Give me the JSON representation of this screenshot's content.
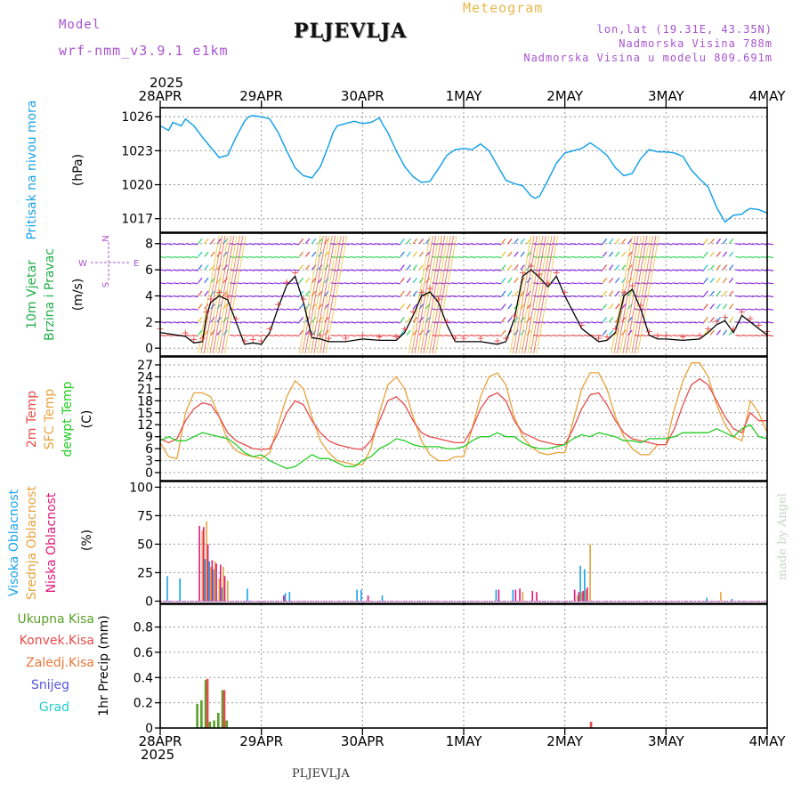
{
  "header": {
    "model_label": "Model",
    "model_name": "wrf-nmm_v3.9.1 e1km",
    "station": "PLJEVLJA",
    "meteogram_label": "Meteogram",
    "lonlat": "lon,lat (19.31E, 43.35N)",
    "elevation": "Nadmorska Visina 788m",
    "elevation_model": "Nadmorska Visina u modelu 809.691m"
  },
  "footer": {
    "station": "PLJEVLJA",
    "credit": "made by Angel",
    "year": "2025"
  },
  "colors": {
    "pressure": "#1aa3e8",
    "temp2m": "#e84a4a",
    "sfc": "#e8a23a",
    "dewpt": "#22cc22",
    "high_cloud": "#1aa3e8",
    "mid_cloud": "#e8a23a",
    "low_cloud": "#e0187a",
    "total_precip": "#5aa02a",
    "conv_precip": "#e84a4a",
    "frozen_precip": "#e8783a",
    "snow": "#5555dd",
    "hail": "#22cccc"
  },
  "chart_data": [
    {
      "type": "line",
      "panel": "pressure",
      "x_ticks": [
        "28APR",
        "29APR",
        "30APR",
        "1MAY",
        "2MAY",
        "3MAY",
        "4MAY"
      ],
      "x_range_hours": [
        0,
        144
      ],
      "ylabel_main": "Pritisak na nivou mora",
      "ylabel_unit": "(hPa)",
      "y_ticks": [
        1017,
        1020,
        1023,
        1026
      ],
      "ylim": [
        1015.8,
        1026.8
      ],
      "grid": true,
      "series": [
        {
          "name": "Pritisak na nivou mora",
          "x": [
            0,
            2,
            3,
            5,
            6,
            8,
            10,
            12,
            14,
            16,
            18,
            20,
            21,
            22,
            24,
            26,
            28,
            30,
            32,
            34,
            36,
            38,
            40,
            41,
            42,
            44,
            46,
            48,
            50,
            52,
            53,
            54,
            56,
            58,
            60,
            62,
            64,
            66,
            68,
            70,
            72,
            74,
            76,
            78,
            80,
            82,
            84,
            86,
            88,
            89,
            90,
            92,
            94,
            96,
            98,
            100,
            102,
            104,
            106,
            108,
            110,
            112,
            114,
            116,
            118,
            120,
            122,
            124,
            126,
            128,
            130,
            132,
            134,
            136,
            138,
            139,
            140,
            142,
            144
          ],
          "y": [
            1025.2,
            1024.8,
            1025.5,
            1025.2,
            1025.8,
            1025.2,
            1024.2,
            1023.3,
            1022.4,
            1022.6,
            1024.2,
            1025.6,
            1026.0,
            1026.1,
            1026.0,
            1025.8,
            1024.6,
            1023.0,
            1021.5,
            1020.8,
            1020.6,
            1021.6,
            1023.5,
            1024.6,
            1025.2,
            1025.4,
            1025.6,
            1025.4,
            1025.5,
            1025.9,
            1025.2,
            1024.6,
            1023.0,
            1021.6,
            1020.7,
            1020.2,
            1020.3,
            1021.4,
            1022.6,
            1023.1,
            1023.2,
            1023.1,
            1023.6,
            1023.0,
            1021.7,
            1020.4,
            1020.1,
            1019.9,
            1019.0,
            1018.8,
            1019.0,
            1020.4,
            1021.9,
            1022.8,
            1023.0,
            1023.2,
            1023.7,
            1023.2,
            1022.6,
            1021.5,
            1020.8,
            1021.0,
            1022.3,
            1023.1,
            1022.9,
            1022.9,
            1022.8,
            1022.5,
            1021.3,
            1020.5,
            1019.8,
            1018.0,
            1016.7,
            1017.3,
            1017.4,
            1017.7,
            1017.9,
            1017.8,
            1017.5
          ]
        }
      ]
    },
    {
      "type": "line",
      "panel": "wind",
      "ylabel_main_1": "10m Vjetar",
      "ylabel_main_2": "Brzina i Pravac",
      "ylabel_unit": "(m/s)",
      "compass": "N",
      "compass_w": "W",
      "compass_e": "E",
      "compass_s": "S",
      "y_ticks": [
        0,
        2,
        4,
        6,
        8
      ],
      "ylim": [
        -0.6,
        8.8
      ],
      "grid": true,
      "series": [
        {
          "name": "speed",
          "x": [
            0,
            6,
            8,
            10,
            11,
            12,
            14,
            16,
            18,
            20,
            22,
            24,
            26,
            28,
            30,
            32,
            34,
            36,
            38,
            40,
            44,
            48,
            52,
            56,
            58,
            60,
            62,
            64,
            66,
            68,
            70,
            72,
            76,
            80,
            82,
            84,
            86,
            88,
            90,
            92,
            94,
            96,
            100,
            104,
            106,
            108,
            110,
            112,
            114,
            116,
            118,
            120,
            124,
            128,
            130,
            132,
            134,
            136,
            138,
            140,
            142,
            144
          ],
          "y": [
            1.2,
            0.9,
            0.4,
            0.5,
            2.5,
            3.5,
            4.0,
            3.7,
            2.0,
            0.3,
            0.4,
            0.3,
            1.2,
            3.1,
            4.8,
            5.5,
            3.5,
            0.8,
            0.7,
            0.5,
            0.5,
            0.7,
            0.6,
            0.6,
            1.2,
            2.5,
            4.0,
            4.3,
            3.5,
            1.8,
            0.5,
            0.5,
            0.5,
            0.3,
            0.5,
            2.2,
            5.5,
            6.0,
            5.4,
            4.7,
            5.5,
            4.0,
            1.5,
            0.5,
            0.6,
            1.2,
            4.0,
            4.5,
            3.0,
            1.0,
            0.7,
            0.7,
            0.6,
            0.7,
            1.2,
            1.8,
            2.1,
            1.2,
            2.5,
            2.0,
            1.5,
            1.0
          ]
        }
      ]
    },
    {
      "type": "line",
      "panel": "temperature",
      "ylabel_1": "2m Temp",
      "ylabel_2": "SFC Temp",
      "ylabel_3": "dewpt Temp",
      "ylabel_unit": "(C)",
      "y_ticks": [
        0,
        3,
        6,
        9,
        12,
        15,
        18,
        21,
        24,
        27
      ],
      "ylim": [
        -2,
        29
      ],
      "grid": true,
      "series": [
        {
          "name": "2m Temp",
          "x": [
            0,
            2,
            4,
            6,
            8,
            10,
            12,
            14,
            16,
            18,
            20,
            22,
            24,
            26,
            28,
            30,
            32,
            34,
            36,
            38,
            40,
            42,
            44,
            46,
            48,
            50,
            52,
            54,
            56,
            58,
            60,
            62,
            64,
            66,
            68,
            70,
            72,
            74,
            76,
            78,
            80,
            82,
            84,
            86,
            88,
            90,
            92,
            94,
            96,
            98,
            100,
            102,
            104,
            106,
            108,
            110,
            112,
            114,
            116,
            118,
            120,
            122,
            124,
            126,
            128,
            130,
            132,
            134,
            136,
            138,
            140,
            142,
            144
          ],
          "y": [
            8.5,
            7.5,
            8.5,
            13,
            16,
            17.5,
            17,
            14,
            10,
            8,
            7,
            6,
            5.8,
            6,
            10,
            15,
            18,
            17,
            13,
            10,
            8,
            7,
            6.5,
            6,
            5.8,
            8,
            13,
            18,
            19,
            17,
            13,
            10,
            9,
            8.5,
            8,
            7.5,
            7.5,
            11,
            16,
            19,
            20,
            18,
            13,
            10,
            9,
            8,
            7.5,
            7,
            7,
            11,
            16,
            19.5,
            20,
            17,
            13,
            10,
            8.5,
            8,
            7.5,
            7,
            7,
            11,
            17,
            22,
            23.5,
            22,
            18,
            14,
            11,
            10,
            15,
            13,
            13
          ]
        },
        {
          "name": "SFC Temp",
          "x": [
            0,
            2,
            4,
            6,
            8,
            10,
            12,
            14,
            16,
            18,
            20,
            22,
            24,
            26,
            28,
            30,
            32,
            34,
            36,
            38,
            40,
            42,
            44,
            46,
            48,
            50,
            52,
            54,
            56,
            58,
            60,
            62,
            64,
            66,
            68,
            70,
            72,
            74,
            76,
            78,
            80,
            82,
            84,
            86,
            88,
            90,
            92,
            94,
            96,
            98,
            100,
            102,
            104,
            106,
            108,
            110,
            112,
            114,
            116,
            118,
            120,
            122,
            124,
            126,
            128,
            130,
            132,
            134,
            136,
            138,
            140,
            142,
            144
          ],
          "y": [
            7.5,
            4,
            3.5,
            15,
            20,
            20,
            19,
            14,
            8,
            5.5,
            4.5,
            4,
            3.5,
            5,
            12,
            19,
            23,
            21,
            14,
            8,
            5,
            3,
            2.5,
            2,
            2,
            6,
            15,
            22,
            24,
            21,
            14,
            8,
            4.5,
            3,
            3,
            4,
            4,
            11,
            19,
            24,
            25,
            22,
            14,
            9,
            6.5,
            5,
            4.5,
            5,
            5,
            13,
            21,
            25,
            25,
            21,
            14,
            9,
            6,
            4.5,
            4.5,
            7,
            7,
            16,
            23,
            27.5,
            27.5,
            24,
            17,
            12,
            9,
            8,
            18,
            15,
            10
          ]
        },
        {
          "name": "dewpt Temp",
          "x": [
            0,
            2,
            4,
            6,
            8,
            10,
            12,
            14,
            16,
            18,
            20,
            22,
            24,
            26,
            28,
            30,
            32,
            34,
            36,
            38,
            40,
            42,
            44,
            46,
            48,
            50,
            52,
            54,
            56,
            58,
            60,
            62,
            64,
            66,
            68,
            70,
            72,
            74,
            76,
            78,
            80,
            82,
            84,
            86,
            88,
            90,
            92,
            94,
            96,
            98,
            100,
            102,
            104,
            106,
            108,
            110,
            112,
            114,
            116,
            118,
            120,
            122,
            124,
            126,
            128,
            130,
            132,
            134,
            136,
            138,
            140,
            142,
            144
          ],
          "y": [
            8,
            9,
            8,
            8,
            9,
            10,
            9.5,
            9,
            8.5,
            7,
            5,
            4,
            4.5,
            3,
            2,
            1,
            1.5,
            3,
            4.5,
            3.5,
            3.5,
            2.5,
            1.5,
            1.5,
            3,
            4,
            6,
            7,
            8.5,
            8,
            7,
            6.5,
            6.5,
            6.5,
            6,
            6,
            6.5,
            8,
            9,
            9,
            10,
            9,
            9,
            7.5,
            6.5,
            6,
            6,
            6.5,
            7,
            8.5,
            9.5,
            9,
            10,
            9.5,
            9,
            8,
            8,
            7.5,
            8.5,
            8.5,
            8.5,
            9,
            10,
            10,
            10,
            10,
            11,
            10,
            9,
            11,
            12,
            9,
            8.5
          ]
        }
      ]
    },
    {
      "type": "bar",
      "panel": "clouds",
      "ylabel_1": "Visoka Oblacnost",
      "ylabel_2": "Srednja Oblacnost",
      "ylabel_3": "Niska Oblacnost",
      "ylabel_unit": "(%)",
      "y_ticks": [
        0,
        25,
        50,
        75,
        100
      ],
      "ylim": [
        -2,
        105
      ],
      "grid": true,
      "series": [
        {
          "name": "Visoka Oblacnost",
          "x": [
            2,
            5,
            11,
            12,
            13,
            15,
            21,
            30,
            31,
            47,
            48,
            53,
            80,
            84,
            100,
            101,
            130,
            136
          ],
          "y": [
            22,
            20,
            37,
            35,
            28,
            12,
            11,
            7,
            8,
            10,
            10,
            5,
            10,
            10,
            31,
            28,
            3,
            2
          ]
        },
        {
          "name": "Srednja Oblacnost",
          "x": [
            10,
            11,
            12,
            13,
            14,
            15,
            16,
            86,
            99,
            100,
            101,
            102,
            133
          ],
          "y": [
            62,
            70,
            30,
            35,
            20,
            30,
            18,
            8,
            5,
            8,
            10,
            50,
            8
          ]
        },
        {
          "name": "Niska Oblacnost",
          "x": [
            9,
            10,
            11,
            12,
            13,
            14,
            15,
            29,
            49,
            80,
            84,
            85,
            88,
            89,
            98,
            99,
            100,
            101
          ],
          "y": [
            66,
            65,
            50,
            36,
            33,
            32,
            22,
            5,
            5,
            10,
            10,
            11,
            9,
            8,
            10,
            8,
            9,
            12
          ]
        }
      ]
    },
    {
      "type": "bar",
      "panel": "precip",
      "ylabel_unit": "1hr Precip (mm)",
      "legend": [
        "Ukupna Kisa",
        "Konvek.Kisa",
        "Zaledj.Kisa",
        "Snijeg",
        "Grad"
      ],
      "y_ticks": [
        0,
        0.2,
        0.4,
        0.6,
        0.8
      ],
      "ylim": [
        0,
        0.98
      ],
      "grid": true,
      "x_bottom_ticks": [
        "28APR",
        "29APR",
        "30APR",
        "1MAY",
        "2MAY",
        "3MAY",
        "4MAY"
      ],
      "series": [
        {
          "name": "Ukupna Kisa",
          "x": [
            9,
            10,
            11,
            12,
            13,
            14,
            15,
            16
          ],
          "y": [
            0.19,
            0.22,
            0.38,
            0.05,
            0.06,
            0.12,
            0.3,
            0.06
          ]
        },
        {
          "name": "Konvek.Kisa",
          "x": [
            11,
            15,
            102
          ],
          "y": [
            0.39,
            0.3,
            0.05
          ]
        }
      ]
    }
  ]
}
